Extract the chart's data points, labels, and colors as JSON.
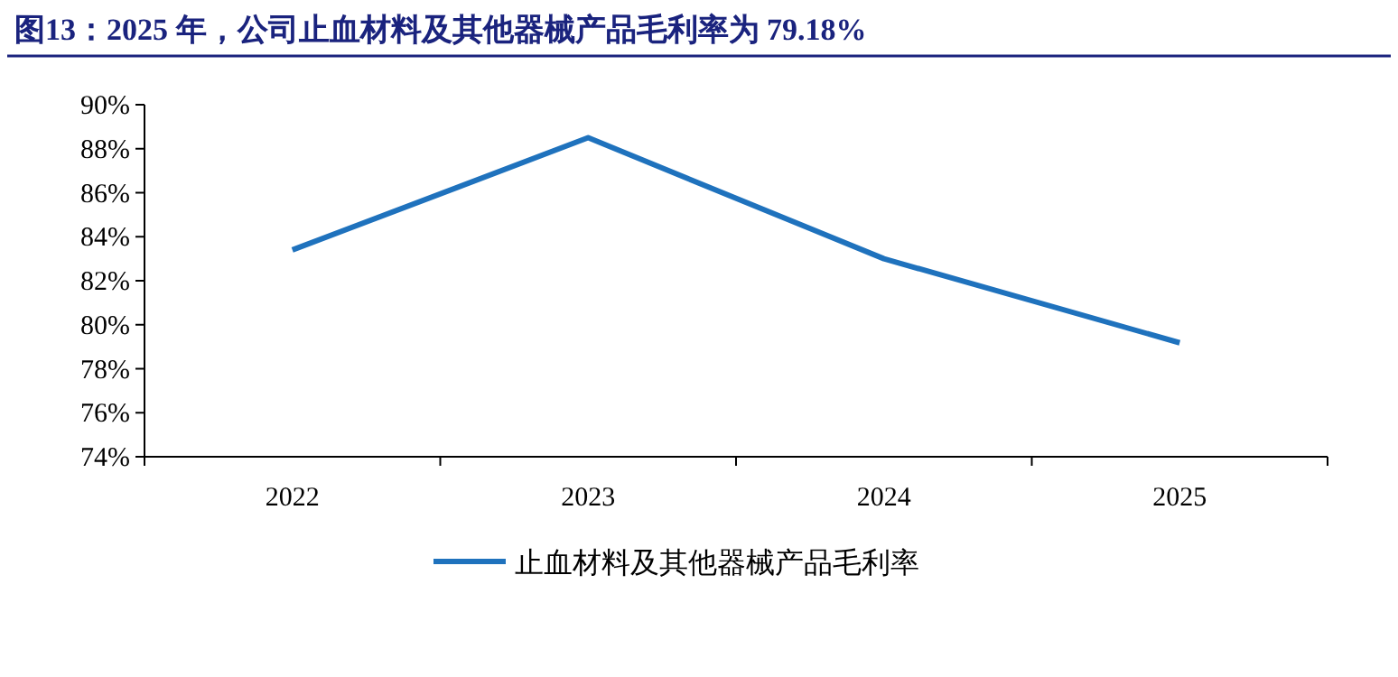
{
  "chart_data": {
    "type": "line",
    "title": "图13：2025 年，公司止血材料及其他器械产品毛利率为 79.18%",
    "categories": [
      "2022",
      "2023",
      "2024",
      "2025"
    ],
    "series": [
      {
        "name": "止血材料及其他器械产品毛利率",
        "color": "#1f72bd",
        "values": [
          83.4,
          88.5,
          83.0,
          79.18
        ]
      }
    ],
    "ylim": [
      74,
      90
    ],
    "yticks": [
      {
        "value": 74,
        "label": "74%"
      },
      {
        "value": 76,
        "label": "76%"
      },
      {
        "value": 78,
        "label": "78%"
      },
      {
        "value": 80,
        "label": "80%"
      },
      {
        "value": 82,
        "label": "82%"
      },
      {
        "value": 84,
        "label": "84%"
      },
      {
        "value": 86,
        "label": "86%"
      },
      {
        "value": 88,
        "label": "88%"
      },
      {
        "value": 90,
        "label": "90%"
      }
    ],
    "grid": false,
    "legend": "bottom",
    "marker": "none",
    "line_style": "solid"
  }
}
